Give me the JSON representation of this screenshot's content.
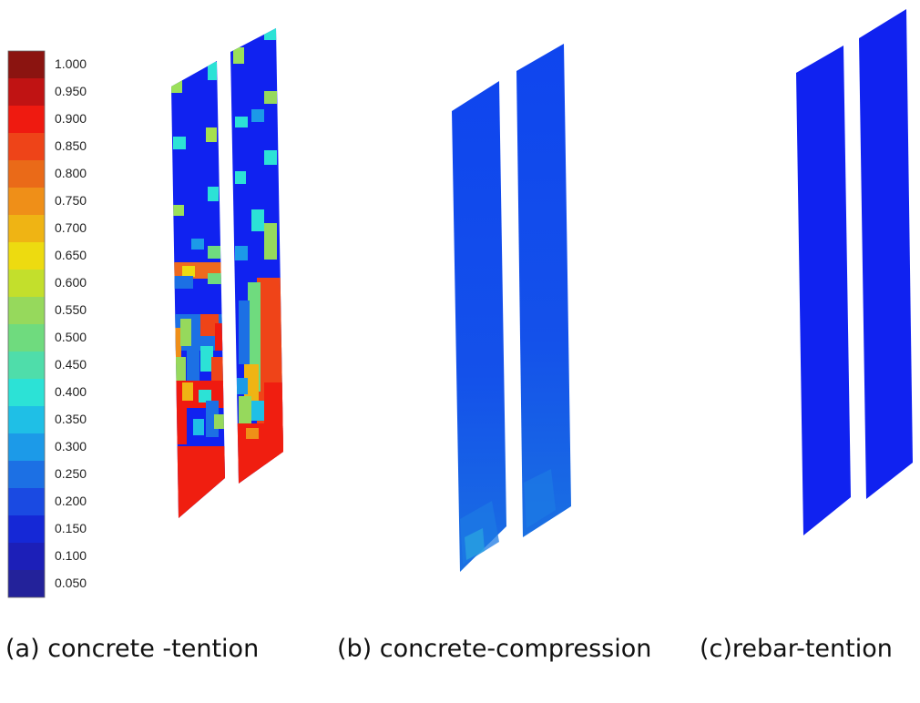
{
  "legend": {
    "labels": [
      "1.000",
      "0.950",
      "0.900",
      "0.850",
      "0.800",
      "0.750",
      "0.700",
      "0.650",
      "0.600",
      "0.550",
      "0.500",
      "0.450",
      "0.400",
      "0.350",
      "0.300",
      "0.250",
      "0.200",
      "0.150",
      "0.100",
      "0.050"
    ],
    "colors": [
      "#8b1410",
      "#c01313",
      "#ef1a10",
      "#ee4418",
      "#ea6a18",
      "#ef8f18",
      "#efb414",
      "#eddb10",
      "#c3df2c",
      "#96d95c",
      "#6fdb7e",
      "#4fddaa",
      "#2ce2d6",
      "#1fbfe6",
      "#1c9ae8",
      "#1c70e4",
      "#1a4ae2",
      "#1528d6",
      "#1c1fb8",
      "#23229a"
    ]
  },
  "panels": [
    {
      "caption": "(a) concrete -tention"
    },
    {
      "caption": "(b) concrete-compression"
    },
    {
      "caption": "(c)rebar-tention"
    }
  ]
}
